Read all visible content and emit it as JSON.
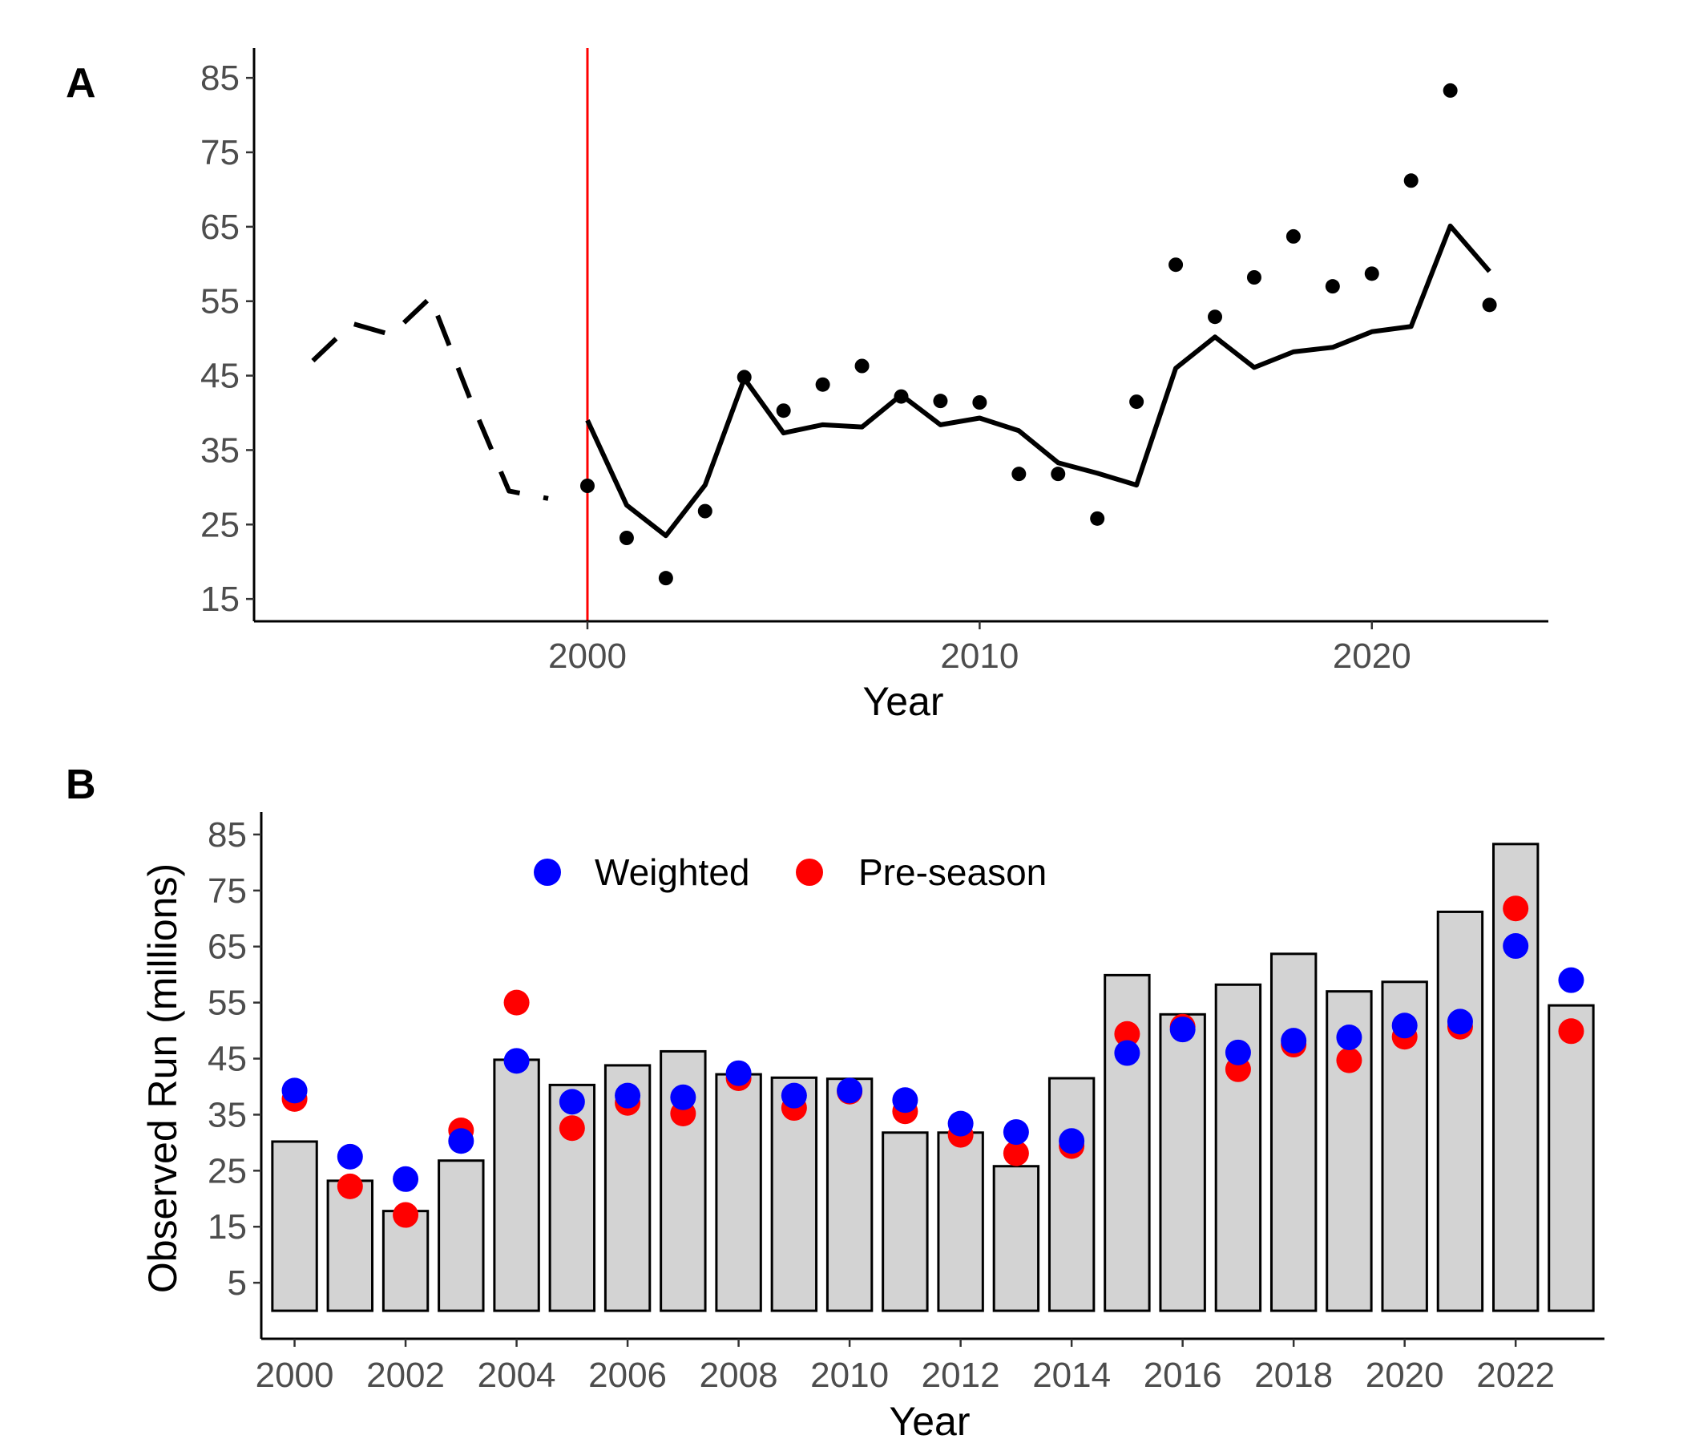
{
  "colors": {
    "line": "#000000",
    "point": "#000000",
    "vline": "#ff0000",
    "bar_fill": "#d3d3d3",
    "bar_stroke": "#000000",
    "weighted": "#0000ff",
    "preseason": "#ff0000"
  },
  "chart_data": [
    {
      "panel": "A",
      "type": "line",
      "xlabel": "Year",
      "ylabel": "",
      "xlim": [
        1991.5,
        2024.5
      ],
      "ylim": [
        12,
        89
      ],
      "x_ticks": [
        2000,
        2010,
        2020
      ],
      "y_ticks": [
        15,
        25,
        35,
        45,
        55,
        65,
        75,
        85
      ],
      "grid": false,
      "vertical_line": {
        "x": 2000,
        "color": "#ff0000"
      },
      "series": [
        {
          "style": "dashed",
          "x": [
            1993,
            1994,
            1995,
            1996,
            1997,
            1998,
            1999
          ],
          "y": [
            47,
            52,
            50.5,
            55.5,
            42,
            29.5,
            28.5
          ]
        },
        {
          "style": "solid",
          "x": [
            2000,
            2001,
            2002,
            2003,
            2004,
            2005,
            2006,
            2007,
            2008,
            2009,
            2010,
            2011,
            2012,
            2013,
            2014,
            2015,
            2016,
            2017,
            2018,
            2019,
            2020,
            2021,
            2022,
            2023
          ],
          "y": [
            39,
            27.6,
            23.5,
            30.3,
            44.6,
            37.3,
            38.4,
            38.1,
            42.4,
            38.4,
            39.3,
            37.6,
            33.3,
            31.9,
            30.3,
            46,
            50.2,
            46.1,
            48.2,
            48.8,
            50.9,
            51.6,
            65.1,
            59
          ]
        },
        {
          "style": "points",
          "x": [
            2000,
            2001,
            2002,
            2003,
            2004,
            2005,
            2006,
            2007,
            2008,
            2009,
            2010,
            2011,
            2012,
            2013,
            2014,
            2015,
            2016,
            2017,
            2018,
            2019,
            2020,
            2021,
            2022,
            2023
          ],
          "y": [
            30.2,
            23.2,
            17.8,
            26.8,
            44.8,
            40.3,
            43.8,
            46.3,
            42.2,
            41.6,
            41.4,
            31.8,
            31.8,
            25.8,
            41.5,
            59.9,
            52.9,
            58.2,
            63.7,
            57,
            58.7,
            71.2,
            83.3,
            54.5
          ]
        }
      ]
    },
    {
      "panel": "B",
      "type": "bar",
      "xlabel": "Year",
      "ylabel": "Observed Run (millions)",
      "ylim": [
        -5,
        89
      ],
      "y_ticks": [
        5,
        15,
        25,
        35,
        45,
        55,
        65,
        75,
        85
      ],
      "x_tick_labels": [
        "2000",
        "2002",
        "2004",
        "2006",
        "2008",
        "2010",
        "2012",
        "2014",
        "2016",
        "2018",
        "2020",
        "2022"
      ],
      "grid": false,
      "bar_base": 0,
      "legend": {
        "position": "top-center",
        "entries": [
          {
            "name": "Weighted",
            "color": "#0000ff"
          },
          {
            "name": "Pre-season",
            "color": "#ff0000"
          }
        ]
      },
      "categories": [
        2000,
        2001,
        2002,
        2003,
        2004,
        2005,
        2006,
        2007,
        2008,
        2009,
        2010,
        2011,
        2012,
        2013,
        2014,
        2015,
        2016,
        2017,
        2018,
        2019,
        2020,
        2021,
        2022,
        2023
      ],
      "values": [
        30.2,
        23.2,
        17.8,
        26.8,
        44.8,
        40.3,
        43.8,
        46.3,
        42.2,
        41.6,
        41.4,
        31.8,
        31.8,
        25.8,
        41.5,
        59.9,
        52.9,
        58.2,
        63.7,
        57,
        58.7,
        71.2,
        83.3,
        54.5
      ],
      "series": [
        {
          "name": "Pre-season",
          "values": [
            37.8,
            22.2,
            17.1,
            32.2,
            55,
            32.6,
            37.1,
            35.2,
            41.5,
            36.2,
            39.1,
            35.6,
            31.4,
            28.1,
            29.4,
            49.4,
            50.7,
            43.1,
            47.5,
            44.7,
            48.9,
            50.7,
            71.8,
            49.9
          ]
        },
        {
          "name": "Weighted",
          "values": [
            39.3,
            27.5,
            23.5,
            30.3,
            44.6,
            37.3,
            38.4,
            38.1,
            42.4,
            38.4,
            39.3,
            37.6,
            33.4,
            31.9,
            30.3,
            46,
            50.2,
            46.1,
            48.2,
            48.8,
            50.9,
            51.6,
            65.1,
            59
          ]
        }
      ]
    }
  ]
}
